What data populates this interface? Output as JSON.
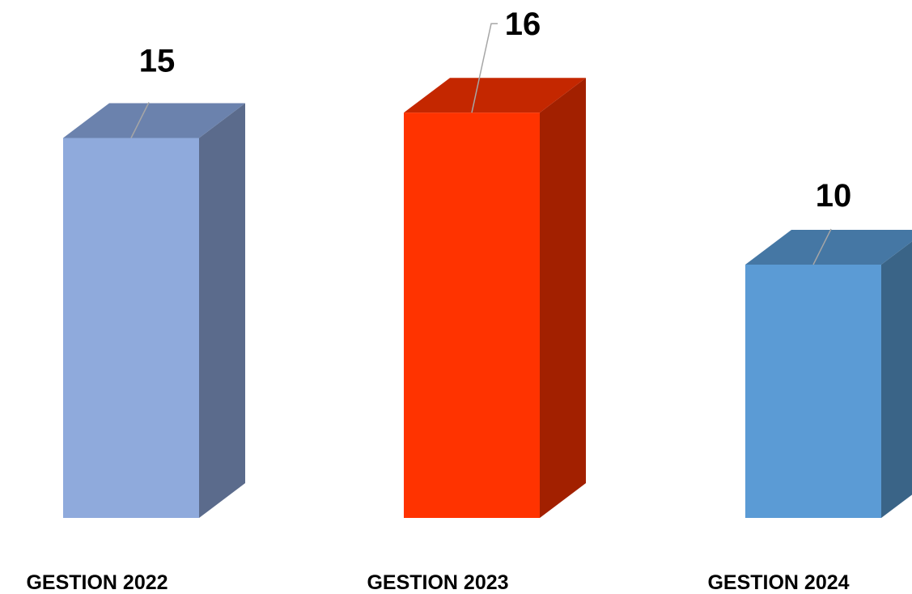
{
  "chart_data": {
    "type": "bar",
    "style": "3d-column",
    "categories": [
      "GESTION 2022",
      "GESTION 2023",
      "GESTION 2024"
    ],
    "values": [
      15,
      16,
      10
    ],
    "data_labels": [
      "15",
      "16",
      "10"
    ],
    "colors": [
      {
        "front": "#8faadc",
        "top": "#6b82ad",
        "side": "#5b6b8c"
      },
      {
        "front": "#ff3300",
        "top": "#c42700",
        "side": "#a22000"
      },
      {
        "front": "#5b9bd5",
        "top": "#4577a4",
        "side": "#3a6487"
      }
    ],
    "title": "",
    "xlabel": "",
    "ylabel": "",
    "ylim": [
      0,
      16
    ],
    "grid": false,
    "legend": "none"
  }
}
